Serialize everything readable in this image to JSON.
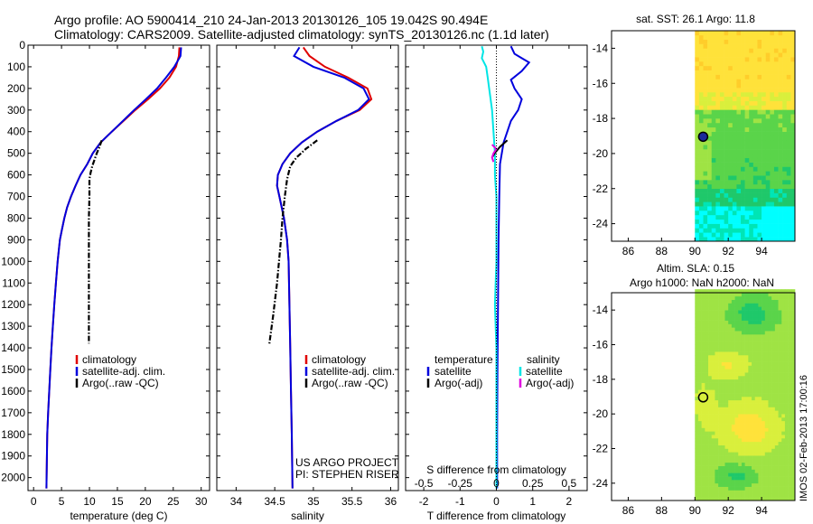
{
  "header": {
    "title_line1": "Argo profile: AO 5900414_210 24-Jan-2013 20130126_105 19.042S 90.494E",
    "title_line2": "Climatology: CARS2009. Satellite-adjusted climatology: synTS_20130126.nc (1.1d later)"
  },
  "stamp": "IMOS 02-Feb-2013 17:00:16",
  "colors": {
    "climatology": "#e00000",
    "satellite": "#0000dd",
    "argo": "#000000",
    "salinity_satellite": "#00e5e5",
    "salinity_argo": "#e000e0",
    "marker": "#000000"
  },
  "chart_data": [
    {
      "type": "line",
      "id": "temperature",
      "xlabel": "temperature (deg C)",
      "ylabel": "",
      "xlim": [
        -1,
        31.5
      ],
      "ylim": [
        2060,
        0
      ],
      "xticks": [
        0,
        5,
        10,
        15,
        20,
        25,
        30
      ],
      "yticks": [
        0,
        100,
        200,
        300,
        400,
        500,
        600,
        700,
        800,
        900,
        1000,
        1100,
        1200,
        1300,
        1400,
        1500,
        1600,
        1700,
        1800,
        1900,
        2000
      ],
      "legend": [
        "climatology",
        "satellite-adj. clim.",
        "Argo(..raw -QC)"
      ],
      "series": [
        {
          "name": "climatology",
          "color_key": "climatology",
          "x": [
            26.1,
            26.0,
            25.5,
            24.3,
            22.6,
            20.5,
            18.2,
            16.1,
            14.0,
            12.0,
            10.6,
            9.6,
            8.4,
            7.5,
            6.7,
            6.0,
            5.5,
            5.1,
            4.7,
            4.3,
            4.0,
            3.7,
            3.45,
            3.2,
            3.0,
            2.8,
            2.6,
            2.45,
            2.3
          ],
          "y": [
            10,
            50,
            100,
            150,
            200,
            250,
            300,
            350,
            400,
            450,
            500,
            550,
            600,
            650,
            700,
            750,
            800,
            850,
            900,
            1000,
            1100,
            1200,
            1300,
            1400,
            1500,
            1600,
            1700,
            1800,
            2050
          ]
        },
        {
          "name": "satellite-adj. clim.",
          "color_key": "satellite",
          "x": [
            26.4,
            26.3,
            25.2,
            23.7,
            22.1,
            20.1,
            18.0,
            16.0,
            14.0,
            12.0,
            10.6,
            9.6,
            8.4,
            7.5,
            6.7,
            6.0,
            5.5,
            5.1,
            4.7,
            4.3,
            4.0,
            3.7,
            3.45,
            3.2,
            3.0,
            2.8,
            2.6,
            2.45,
            2.3
          ],
          "y": [
            10,
            50,
            100,
            150,
            200,
            250,
            300,
            350,
            400,
            450,
            500,
            550,
            600,
            650,
            700,
            750,
            800,
            850,
            900,
            1000,
            1100,
            1200,
            1300,
            1400,
            1500,
            1600,
            1700,
            1800,
            2050
          ]
        },
        {
          "name": "Argo(..raw -QC)",
          "color_key": "argo",
          "style": "dashdot",
          "x": [
            12.2,
            11.8,
            11.3,
            10.9,
            10.5,
            10.2,
            10.0,
            10.0,
            9.9,
            9.9,
            9.9,
            9.9,
            9.9,
            9.9,
            9.9
          ],
          "y": [
            440,
            470,
            500,
            530,
            560,
            590,
            620,
            700,
            800,
            900,
            1000,
            1100,
            1200,
            1300,
            1380
          ]
        }
      ]
    },
    {
      "type": "line",
      "id": "salinity",
      "xlabel": "salinity",
      "ylabel": "",
      "xlim": [
        33.75,
        36.1
      ],
      "ylim": [
        2060,
        0
      ],
      "xticks": [
        34,
        34.5,
        35,
        35.5,
        36
      ],
      "yticks": [
        0,
        100,
        200,
        300,
        400,
        500,
        600,
        700,
        800,
        900,
        1000,
        1100,
        1200,
        1300,
        1400,
        1500,
        1600,
        1700,
        1800,
        1900,
        2000
      ],
      "legend": [
        "climatology",
        "satellite-adj. clim.",
        "Argo(..raw -QC)"
      ],
      "annotations": [
        "US ARGO PROJECT",
        "PI: STEPHEN RISER"
      ],
      "series": [
        {
          "name": "climatology",
          "color_key": "climatology",
          "x": [
            34.87,
            34.95,
            35.15,
            35.45,
            35.7,
            35.75,
            35.6,
            35.3,
            35.05,
            34.85,
            34.7,
            34.6,
            34.54,
            34.53,
            34.56,
            34.62,
            34.66,
            34.68,
            34.69,
            34.7,
            34.71,
            34.72,
            34.73
          ],
          "y": [
            10,
            50,
            100,
            150,
            200,
            250,
            300,
            350,
            400,
            450,
            500,
            550,
            600,
            650,
            700,
            800,
            900,
            1000,
            1200,
            1400,
            1600,
            1800,
            2050
          ]
        },
        {
          "name": "satellite-adj. clim.",
          "color_key": "satellite",
          "x": [
            34.82,
            34.75,
            35.0,
            35.4,
            35.65,
            35.72,
            35.58,
            35.3,
            35.05,
            34.85,
            34.7,
            34.6,
            34.54,
            34.53,
            34.56,
            34.62,
            34.66,
            34.68,
            34.69,
            34.7,
            34.71,
            34.72,
            34.73
          ],
          "y": [
            10,
            50,
            100,
            150,
            200,
            250,
            300,
            350,
            400,
            450,
            500,
            550,
            600,
            650,
            700,
            800,
            900,
            1000,
            1200,
            1400,
            1600,
            1800,
            2050
          ]
        },
        {
          "name": "Argo(..raw -QC)",
          "color_key": "argo",
          "style": "dashdot",
          "x": [
            35.05,
            34.9,
            34.78,
            34.7,
            34.66,
            34.63,
            34.6,
            34.58,
            34.53,
            34.48,
            34.43
          ],
          "y": [
            440,
            480,
            520,
            560,
            620,
            700,
            800,
            900,
            1100,
            1250,
            1380
          ]
        }
      ]
    },
    {
      "type": "line",
      "id": "difference",
      "xlabel": "T difference from climatology",
      "xlabel_top": "S difference from climatology",
      "ylabel": "",
      "xlim": [
        -2.5,
        2.5
      ],
      "xlim_salinity": [
        -0.625,
        0.625
      ],
      "ylim": [
        2060,
        0
      ],
      "xticks": [
        -2,
        -1,
        0,
        1,
        2
      ],
      "xticks_salinity": [
        "-0.5",
        "-0.25",
        "0",
        "0.25",
        "0.5"
      ],
      "legend": {
        "temperature_heading": "temperature",
        "salinity_heading": "salinity",
        "temperature": [
          "satellite",
          "Argo(-adj)"
        ],
        "salinity": [
          "satellite",
          "Argo(-adj)"
        ]
      },
      "series": [
        {
          "name": "satellite",
          "color_key": "satellite",
          "axis": "T",
          "x": [
            0.4,
            0.5,
            0.7,
            0.9,
            0.7,
            0.4,
            0.5,
            0.7,
            0.6,
            0.4,
            0.3,
            0.2,
            0.15,
            0.1,
            0.08,
            0.06,
            0.05,
            0.04,
            0.03,
            0.02,
            0.02
          ],
          "y": [
            5,
            40,
            60,
            80,
            120,
            160,
            200,
            250,
            300,
            350,
            400,
            450,
            500,
            550,
            700,
            900,
            1100,
            1300,
            1500,
            1800,
            2050
          ]
        },
        {
          "name": "satellite",
          "color_key": "salinity_satellite",
          "axis": "S",
          "x": [
            -0.1,
            -0.09,
            -0.1,
            -0.07,
            -0.06,
            -0.05,
            -0.04,
            -0.03,
            -0.02,
            -0.01,
            -0.01,
            0.0,
            0.0,
            0.0,
            -0.01,
            0.0,
            0.0,
            0.0
          ],
          "y": [
            5,
            30,
            60,
            100,
            150,
            200,
            250,
            300,
            400,
            500,
            600,
            700,
            800,
            1000,
            1200,
            1400,
            1700,
            2050
          ]
        },
        {
          "name": "Argo(-adj)",
          "color_key": "argo",
          "axis": "T",
          "x": [
            0.3,
            0.1,
            -0.05,
            -0.1
          ],
          "y": [
            440,
            470,
            500,
            515
          ]
        },
        {
          "name": "Argo(-adj)",
          "color_key": "salinity_argo",
          "axis": "S",
          "x": [
            -0.03,
            0.0,
            -0.02,
            -0.03,
            -0.02
          ],
          "y": [
            460,
            480,
            500,
            520,
            540
          ]
        }
      ]
    },
    {
      "type": "heatmap",
      "id": "sst",
      "title": "sat. SST: 26.1  Argo: 11.8",
      "xlim": [
        85,
        96
      ],
      "ylim": [
        -25,
        -13
      ],
      "xticks": [
        86,
        88,
        90,
        92,
        94
      ],
      "yticks": [
        -14,
        -16,
        -18,
        -20,
        -22,
        -24
      ],
      "data_extent_x": [
        90,
        96
      ],
      "marker": {
        "lon": 90.494,
        "lat": -19.042,
        "filled": true
      },
      "palette": [
        "#00ffff",
        "#00e5b5",
        "#1fc86a",
        "#5ad44a",
        "#9fe344",
        "#d9ef3c",
        "#ffe23a",
        "#ffcd2a"
      ]
    },
    {
      "type": "heatmap",
      "id": "sla",
      "title": "Altim. SLA: 0.15",
      "subtitle": "Argo h1000: NaN h2000: NaN",
      "xlim": [
        85,
        96
      ],
      "ylim": [
        -25,
        -13
      ],
      "xticks": [
        86,
        88,
        90,
        92,
        94
      ],
      "yticks": [
        -14,
        -16,
        -18,
        -20,
        -22,
        -24
      ],
      "data_extent_x": [
        90,
        96
      ],
      "marker": {
        "lon": 90.494,
        "lat": -19.042,
        "filled": false
      },
      "palette": [
        "#1fc86a",
        "#5ad44a",
        "#9fe344",
        "#d9ef3c",
        "#ffe23a",
        "#ffcd2a",
        "#ffb020"
      ]
    }
  ]
}
